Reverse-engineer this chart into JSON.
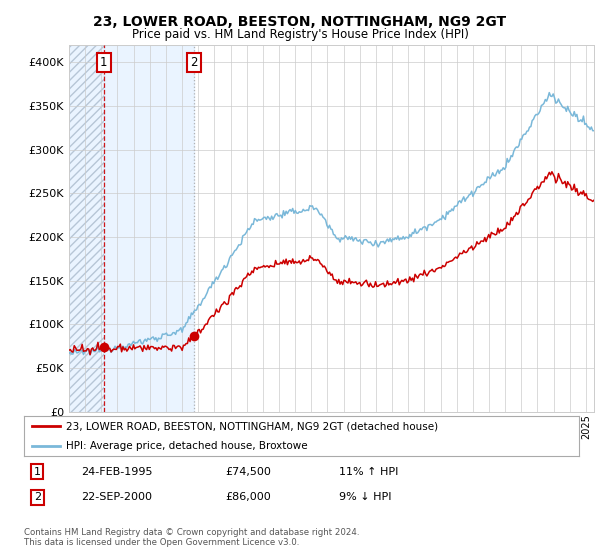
{
  "title": "23, LOWER ROAD, BEESTON, NOTTINGHAM, NG9 2GT",
  "subtitle": "Price paid vs. HM Land Registry's House Price Index (HPI)",
  "legend_line1": "23, LOWER ROAD, BEESTON, NOTTINGHAM, NG9 2GT (detached house)",
  "legend_line2": "HPI: Average price, detached house, Broxtowe",
  "sale1_date_num": 1995.15,
  "sale1_price": 74500,
  "sale2_date_num": 2000.73,
  "sale2_price": 86000,
  "table_row1": [
    "1",
    "24-FEB-1995",
    "£74,500",
    "11% ↑ HPI"
  ],
  "table_row2": [
    "2",
    "22-SEP-2000",
    "£86,000",
    "9% ↓ HPI"
  ],
  "footnote": "Contains HM Land Registry data © Crown copyright and database right 2024.\nThis data is licensed under the Open Government Licence v3.0.",
  "ylim": [
    0,
    420000
  ],
  "xmin": 1993.0,
  "xmax": 2025.5,
  "bg_color": "#ffffff",
  "plot_bg_color": "#ffffff",
  "grid_color": "#cccccc",
  "hpi_color": "#7ab8d9",
  "price_color": "#cc0000",
  "shade_color": "#ddeeff",
  "hatch_color": "#aabbcc",
  "vline1_color": "#cc0000",
  "vline2_color": "#aaaaaa"
}
